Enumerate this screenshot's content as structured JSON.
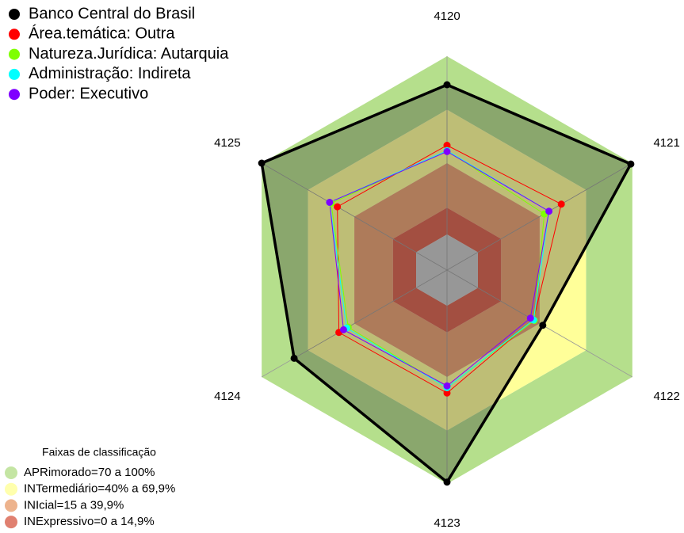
{
  "chart_data": {
    "type": "radar",
    "categories": [
      "4120",
      "4121",
      "4122",
      "4123",
      "4124",
      "4125"
    ],
    "ylim": [
      -20,
      100
    ],
    "series": [
      {
        "name": "Banco Central do Brasil",
        "color": "#000000",
        "values": [
          84,
          99,
          42,
          99,
          79,
          100
        ]
      },
      {
        "name": "Área.temática: Outra",
        "color": "#ff0000",
        "values": [
          50,
          54,
          36,
          49,
          50,
          51
        ]
      },
      {
        "name": "Natureza.Jurídica: Autarquia",
        "color": "#7fff00",
        "values": [
          47,
          43,
          36.5,
          46,
          44,
          55
        ]
      },
      {
        "name": "Administração: Indireta",
        "color": "#00ffff",
        "values": [
          47,
          46,
          36,
          46,
          45,
          56
        ]
      },
      {
        "name": "Poder: Executivo",
        "color": "#8000ff",
        "values": [
          46.5,
          46,
          34,
          45,
          47,
          56
        ]
      }
    ],
    "bands_title": "Faixas de classificação",
    "bands": [
      {
        "label": "APRimorado=70 a 100%",
        "from": 70,
        "to": 100,
        "color": "#b5df8c"
      },
      {
        "label": "INTermediário=40% a 69,9%",
        "from": 40,
        "to": 70,
        "color": "#ffff99"
      },
      {
        "label": "INIcial=15 a 39,9%",
        "from": 15,
        "to": 40,
        "color": "#e8a070"
      },
      {
        "label": "INExpressivo=0 a 14,9%",
        "from": 0,
        "to": 15,
        "color": "#d8604c"
      }
    ]
  }
}
